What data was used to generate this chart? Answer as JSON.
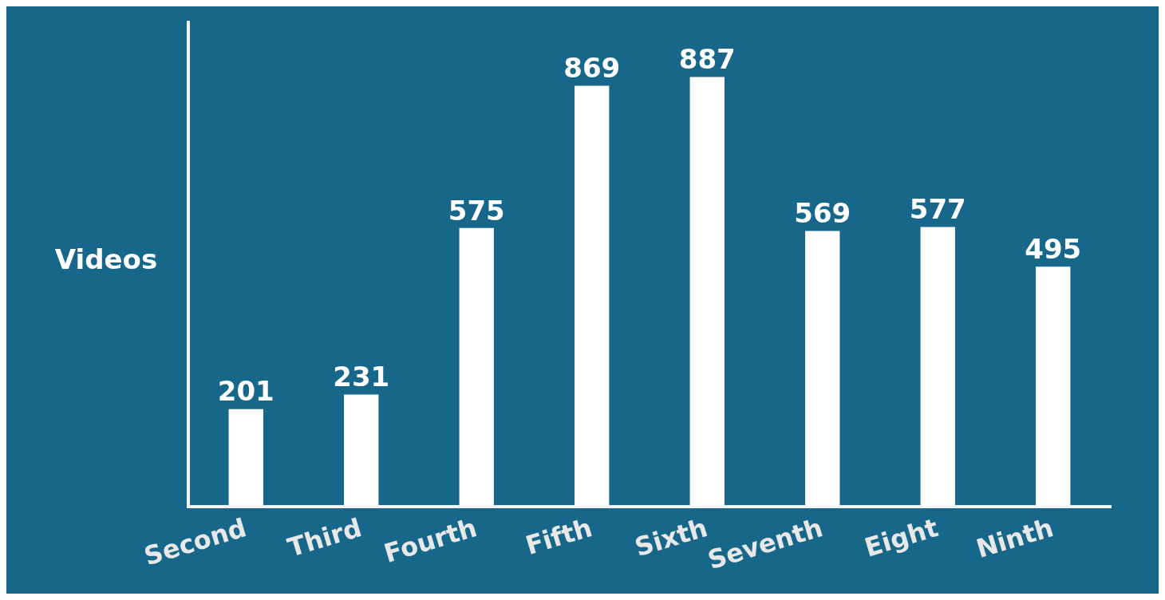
{
  "chart_data": {
    "type": "bar",
    "ylabel": "Videos",
    "categories": [
      "Second",
      "Third",
      "Fourth",
      "Fifth",
      "Sixth",
      "Seventh",
      "Eight",
      "Ninth"
    ],
    "values": [
      201,
      231,
      575,
      869,
      887,
      569,
      577,
      495
    ],
    "color": "#ffffff",
    "data_labels": true,
    "tick_labels": "x",
    "grid": false,
    "legend": false
  }
}
